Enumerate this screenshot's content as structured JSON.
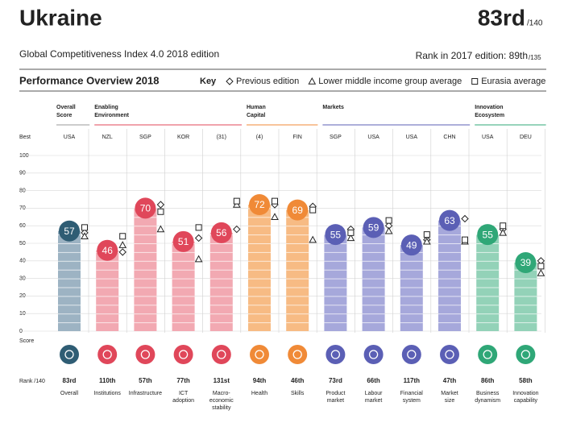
{
  "header": {
    "title": "Ukraine",
    "rank": "83rd",
    "rank_total": "/140",
    "subtitle": "Global Competitiveness Index 4.0 2018 edition",
    "rank_prev": "Rank in 2017 edition: 89th",
    "rank_prev_total": "/135"
  },
  "chart_data": {
    "type": "bar",
    "title": "Performance Overview 2018",
    "key": {
      "title": "Key",
      "items": [
        {
          "name": "Previous edition",
          "symbol": "diamond"
        },
        {
          "name": "Lower middle income group average",
          "symbol": "triangle"
        },
        {
          "name": "Eurasia average",
          "symbol": "square"
        }
      ]
    },
    "best_label": "Best",
    "score_label": "Score",
    "rank_label": "Rank /140",
    "ylim": [
      0,
      100
    ],
    "yticks": [
      0,
      10,
      20,
      30,
      40,
      50,
      60,
      70,
      80,
      90,
      100
    ],
    "groups": [
      {
        "label": [
          "Overall",
          "Score"
        ],
        "color": "#2f5d74",
        "light": "#9db3c3",
        "line": "#999999",
        "pillars": [
          {
            "name": [
              "Overall"
            ],
            "best": "USA",
            "score": 57,
            "rank": "83rd",
            "markers": [
              56,
              54,
              59
            ]
          }
        ]
      },
      {
        "label": [
          "Enabling",
          "Environment"
        ],
        "color": "#e0475a",
        "light": "#f2a9b2",
        "line": "#e0475a",
        "pillars": [
          {
            "name": [
              "Institutions"
            ],
            "best": "NZL",
            "score": 46,
            "rank": "110th",
            "markers": [
              45,
              49,
              54
            ]
          },
          {
            "name": [
              "Infrastructure"
            ],
            "best": "SGP",
            "score": 70,
            "rank": "57th",
            "markers": [
              72,
              58,
              68
            ]
          },
          {
            "name": [
              "ICT",
              "adoption"
            ],
            "best": "KOR",
            "score": 51,
            "rank": "77th",
            "markers": [
              53,
              41,
              59
            ]
          },
          {
            "name": [
              "Macro-",
              "economic",
              "stability"
            ],
            "best": "(31)",
            "score": 56,
            "rank": "131st",
            "markers": [
              58,
              72,
              74
            ]
          }
        ]
      },
      {
        "label": [
          "Human",
          "Capital"
        ],
        "color": "#f08a37",
        "light": "#f7bb84",
        "line": "#f08a37",
        "pillars": [
          {
            "name": [
              "Health"
            ],
            "best": "(4)",
            "score": 72,
            "rank": "94th",
            "markers": [
              72,
              65,
              74
            ]
          },
          {
            "name": [
              "Skills"
            ],
            "best": "FIN",
            "score": 69,
            "rank": "46th",
            "markers": [
              71,
              52,
              69
            ]
          }
        ]
      },
      {
        "label": [
          "Markets"
        ],
        "color": "#5b5fb5",
        "light": "#a6a8db",
        "line": "#5b5fb5",
        "pillars": [
          {
            "name": [
              "Product",
              "market"
            ],
            "best": "SGP",
            "score": 55,
            "rank": "73rd",
            "markers": [
              58,
              53,
              56
            ]
          },
          {
            "name": [
              "Labour",
              "market"
            ],
            "best": "USA",
            "score": 59,
            "rank": "66th",
            "markers": [
              60,
              57,
              63
            ]
          },
          {
            "name": [
              "Financial",
              "system"
            ],
            "best": "USA",
            "score": 49,
            "rank": "117th",
            "markers": [
              52,
              51,
              55
            ]
          },
          {
            "name": [
              "Market",
              "size"
            ],
            "best": "CHN",
            "score": 63,
            "rank": "47th",
            "markers": [
              64,
              51,
              52
            ]
          }
        ]
      },
      {
        "label": [
          "Innovation",
          "Ecosystem"
        ],
        "color": "#2fa777",
        "light": "#93d2b8",
        "line": "#2fa777",
        "pillars": [
          {
            "name": [
              "Business",
              "dynamism"
            ],
            "best": "USA",
            "score": 55,
            "rank": "86th",
            "markers": [
              58,
              56,
              60
            ]
          },
          {
            "name": [
              "Innovation",
              "capability"
            ],
            "best": "DEU",
            "score": 39,
            "rank": "58th",
            "markers": [
              40,
              33,
              37
            ]
          }
        ]
      }
    ]
  }
}
